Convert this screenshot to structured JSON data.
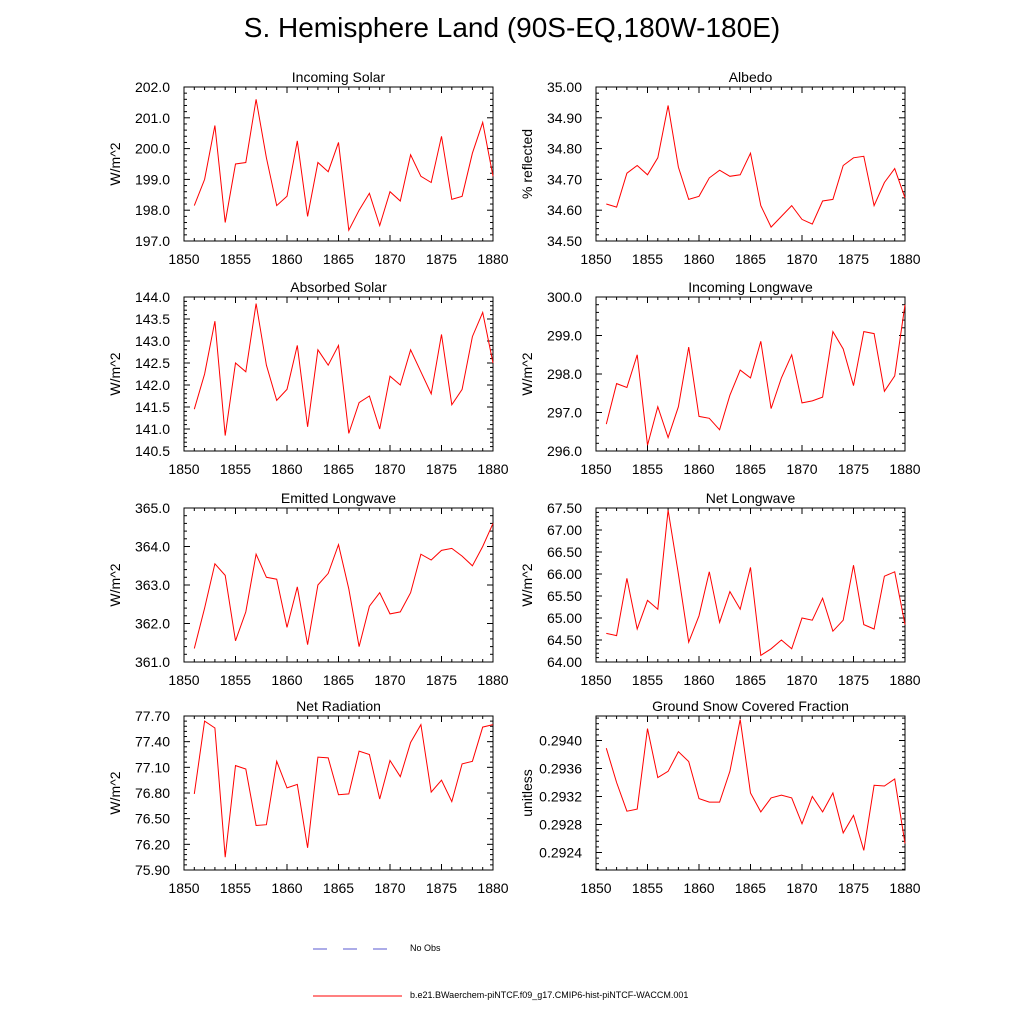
{
  "title": "S. Hemisphere Land (90S-EQ,180W-180E)",
  "legend": {
    "obs_label": "No Obs",
    "model_label": "b.e21.BWaerchem-piNTCF.f09_g17.CMIP6-hist-piNTCF-WACCM.001",
    "obs_color": "#5a5ad0",
    "model_color": "#ff0000"
  },
  "chart_data": [
    {
      "type": "line",
      "title": "Incoming Solar",
      "ylabel": "W/m^2",
      "xlim": [
        1850,
        1880
      ],
      "xticks": [
        "1850",
        "1855",
        "1860",
        "1865",
        "1870",
        "1875",
        "1880"
      ],
      "ylim": [
        197.0,
        202.0
      ],
      "yticks": [
        "197.0",
        "198.0",
        "199.0",
        "200.0",
        "201.0",
        "202.0"
      ],
      "series": [
        {
          "color": "#ff0000",
          "x": [
            1851,
            1852,
            1853,
            1854,
            1855,
            1856,
            1857,
            1858,
            1859,
            1860,
            1861,
            1862,
            1863,
            1864,
            1865,
            1866,
            1867,
            1868,
            1869,
            1870,
            1871,
            1872,
            1873,
            1874,
            1875,
            1876,
            1877,
            1878,
            1879,
            1880
          ],
          "values": [
            198.15,
            199.0,
            200.75,
            197.6,
            199.5,
            199.55,
            201.6,
            199.7,
            198.15,
            198.45,
            200.25,
            197.8,
            199.55,
            199.25,
            200.2,
            197.35,
            198.0,
            198.55,
            197.5,
            198.6,
            198.3,
            199.8,
            199.1,
            198.9,
            200.4,
            198.35,
            198.45,
            199.85,
            200.85,
            199.1
          ]
        }
      ]
    },
    {
      "type": "line",
      "title": "Albedo",
      "ylabel": "% reflected",
      "xlim": [
        1850,
        1880
      ],
      "xticks": [
        "1850",
        "1855",
        "1860",
        "1865",
        "1870",
        "1875",
        "1880"
      ],
      "ylim": [
        34.5,
        35.0
      ],
      "yticks": [
        "34.50",
        "34.60",
        "34.70",
        "34.80",
        "34.90",
        "35.00"
      ],
      "series": [
        {
          "color": "#ff0000",
          "x": [
            1851,
            1852,
            1853,
            1854,
            1855,
            1856,
            1857,
            1858,
            1859,
            1860,
            1861,
            1862,
            1863,
            1864,
            1865,
            1866,
            1867,
            1868,
            1869,
            1870,
            1871,
            1872,
            1873,
            1874,
            1875,
            1876,
            1877,
            1878,
            1879,
            1880
          ],
          "values": [
            34.62,
            34.61,
            34.72,
            34.745,
            34.715,
            34.77,
            34.94,
            34.74,
            34.635,
            34.645,
            34.705,
            34.73,
            34.71,
            34.715,
            34.785,
            34.615,
            34.545,
            34.58,
            34.615,
            34.57,
            34.555,
            34.63,
            34.635,
            34.745,
            34.77,
            34.775,
            34.615,
            34.69,
            34.735,
            34.64
          ]
        }
      ]
    },
    {
      "type": "line",
      "title": "Absorbed Solar",
      "ylabel": "W/m^2",
      "xlim": [
        1850,
        1880
      ],
      "xticks": [
        "1850",
        "1855",
        "1860",
        "1865",
        "1870",
        "1875",
        "1880"
      ],
      "ylim": [
        140.5,
        144.0
      ],
      "yticks": [
        "140.5",
        "141.0",
        "141.5",
        "142.0",
        "142.5",
        "143.0",
        "143.5",
        "144.0"
      ],
      "series": [
        {
          "color": "#ff0000",
          "x": [
            1851,
            1852,
            1853,
            1854,
            1855,
            1856,
            1857,
            1858,
            1859,
            1860,
            1861,
            1862,
            1863,
            1864,
            1865,
            1866,
            1867,
            1868,
            1869,
            1870,
            1871,
            1872,
            1873,
            1874,
            1875,
            1876,
            1877,
            1878,
            1879,
            1880
          ],
          "values": [
            141.45,
            142.25,
            143.45,
            140.85,
            142.5,
            142.3,
            143.85,
            142.45,
            141.65,
            141.9,
            142.9,
            141.05,
            142.8,
            142.45,
            142.9,
            140.9,
            141.6,
            141.75,
            141.0,
            142.2,
            142.0,
            142.8,
            142.3,
            141.8,
            143.15,
            141.55,
            141.9,
            143.1,
            143.65,
            142.5
          ]
        }
      ]
    },
    {
      "type": "line",
      "title": "Incoming Longwave",
      "ylabel": "W/m^2",
      "xlim": [
        1850,
        1880
      ],
      "xticks": [
        "1850",
        "1855",
        "1860",
        "1865",
        "1870",
        "1875",
        "1880"
      ],
      "ylim": [
        296.0,
        300.0
      ],
      "yticks": [
        "296.0",
        "297.0",
        "298.0",
        "299.0",
        "300.0"
      ],
      "series": [
        {
          "color": "#ff0000",
          "x": [
            1851,
            1852,
            1853,
            1854,
            1855,
            1856,
            1857,
            1858,
            1859,
            1860,
            1861,
            1862,
            1863,
            1864,
            1865,
            1866,
            1867,
            1868,
            1869,
            1870,
            1871,
            1872,
            1873,
            1874,
            1875,
            1876,
            1877,
            1878,
            1879,
            1880
          ],
          "values": [
            296.7,
            297.75,
            297.65,
            298.5,
            296.15,
            297.15,
            296.35,
            297.15,
            298.7,
            296.9,
            296.85,
            296.55,
            297.45,
            298.1,
            297.9,
            298.85,
            297.1,
            297.9,
            298.5,
            297.25,
            297.3,
            297.4,
            299.1,
            298.65,
            297.7,
            299.1,
            299.05,
            297.55,
            297.95,
            299.8
          ]
        }
      ]
    },
    {
      "type": "line",
      "title": "Emitted Longwave",
      "ylabel": "W/m^2",
      "xlim": [
        1850,
        1880
      ],
      "xticks": [
        "1850",
        "1855",
        "1860",
        "1865",
        "1870",
        "1875",
        "1880"
      ],
      "ylim": [
        361.0,
        365.0
      ],
      "yticks": [
        "361.0",
        "362.0",
        "363.0",
        "364.0",
        "365.0"
      ],
      "series": [
        {
          "color": "#ff0000",
          "x": [
            1851,
            1852,
            1853,
            1854,
            1855,
            1856,
            1857,
            1858,
            1859,
            1860,
            1861,
            1862,
            1863,
            1864,
            1865,
            1866,
            1867,
            1868,
            1869,
            1870,
            1871,
            1872,
            1873,
            1874,
            1875,
            1876,
            1877,
            1878,
            1879,
            1880
          ],
          "values": [
            361.35,
            362.4,
            363.55,
            363.25,
            361.55,
            362.3,
            363.8,
            363.2,
            363.15,
            361.9,
            362.95,
            361.45,
            363.0,
            363.3,
            364.05,
            362.9,
            361.4,
            362.45,
            362.8,
            362.25,
            362.3,
            362.8,
            363.8,
            363.65,
            363.9,
            363.95,
            363.75,
            363.5,
            364.0,
            364.6
          ]
        }
      ]
    },
    {
      "type": "line",
      "title": "Net Longwave",
      "ylabel": "W/m^2",
      "xlim": [
        1850,
        1880
      ],
      "xticks": [
        "1850",
        "1855",
        "1860",
        "1865",
        "1870",
        "1875",
        "1880"
      ],
      "ylim": [
        64.0,
        67.5
      ],
      "yticks": [
        "64.00",
        "64.50",
        "65.00",
        "65.50",
        "66.00",
        "66.50",
        "67.00",
        "67.50"
      ],
      "series": [
        {
          "color": "#ff0000",
          "x": [
            1851,
            1852,
            1853,
            1854,
            1855,
            1856,
            1857,
            1858,
            1859,
            1860,
            1861,
            1862,
            1863,
            1864,
            1865,
            1866,
            1867,
            1868,
            1869,
            1870,
            1871,
            1872,
            1873,
            1874,
            1875,
            1876,
            1877,
            1878,
            1879,
            1880
          ],
          "values": [
            64.65,
            64.6,
            65.9,
            64.75,
            65.4,
            65.2,
            67.45,
            66.0,
            64.45,
            65.05,
            66.05,
            64.9,
            65.6,
            65.2,
            66.15,
            64.15,
            64.3,
            64.5,
            64.3,
            65.0,
            64.95,
            65.45,
            64.7,
            64.95,
            66.2,
            64.85,
            64.75,
            65.95,
            66.05,
            64.85
          ]
        }
      ]
    },
    {
      "type": "line",
      "title": "Net Radiation",
      "ylabel": "W/m^2",
      "xlim": [
        1850,
        1880
      ],
      "xticks": [
        "1850",
        "1855",
        "1860",
        "1865",
        "1870",
        "1875",
        "1880"
      ],
      "ylim": [
        75.9,
        77.7
      ],
      "yticks": [
        "75.90",
        "76.20",
        "76.50",
        "76.80",
        "77.10",
        "77.40",
        "77.70"
      ],
      "series": [
        {
          "color": "#ff0000",
          "x": [
            1851,
            1852,
            1853,
            1854,
            1855,
            1856,
            1857,
            1858,
            1859,
            1860,
            1861,
            1862,
            1863,
            1864,
            1865,
            1866,
            1867,
            1868,
            1869,
            1870,
            1871,
            1872,
            1873,
            1874,
            1875,
            1876,
            1877,
            1878,
            1879,
            1880
          ],
          "values": [
            76.79,
            77.64,
            77.56,
            76.05,
            77.12,
            77.08,
            76.42,
            76.43,
            77.17,
            76.86,
            76.9,
            76.16,
            77.22,
            77.21,
            76.78,
            76.79,
            77.29,
            77.25,
            76.73,
            77.18,
            76.99,
            77.39,
            77.6,
            76.81,
            76.95,
            76.7,
            77.14,
            77.17,
            77.57,
            77.6
          ]
        }
      ]
    },
    {
      "type": "line",
      "title": "Ground Snow Covered Fraction",
      "ylabel": "unitless",
      "xlim": [
        1850,
        1880
      ],
      "xticks": [
        "1850",
        "1855",
        "1860",
        "1865",
        "1870",
        "1875",
        "1880"
      ],
      "ylim": [
        0.29215,
        0.29435
      ],
      "yticks": [
        "0.2924",
        "0.2928",
        "0.2932",
        "0.2936",
        "0.2940"
      ],
      "series": [
        {
          "color": "#ff0000",
          "x": [
            1851,
            1852,
            1853,
            1854,
            1855,
            1856,
            1857,
            1858,
            1859,
            1860,
            1861,
            1862,
            1863,
            1864,
            1865,
            1866,
            1867,
            1868,
            1869,
            1870,
            1871,
            1872,
            1873,
            1874,
            1875,
            1876,
            1877,
            1878,
            1879,
            1880
          ],
          "values": [
            0.29389,
            0.2934,
            0.29299,
            0.29302,
            0.29417,
            0.29347,
            0.29356,
            0.29384,
            0.2937,
            0.29317,
            0.29312,
            0.29312,
            0.29356,
            0.2943,
            0.29325,
            0.29298,
            0.29318,
            0.29322,
            0.29318,
            0.29281,
            0.2932,
            0.29298,
            0.29325,
            0.29268,
            0.29293,
            0.29243,
            0.29336,
            0.29335,
            0.29345,
            0.29253
          ]
        }
      ]
    }
  ]
}
